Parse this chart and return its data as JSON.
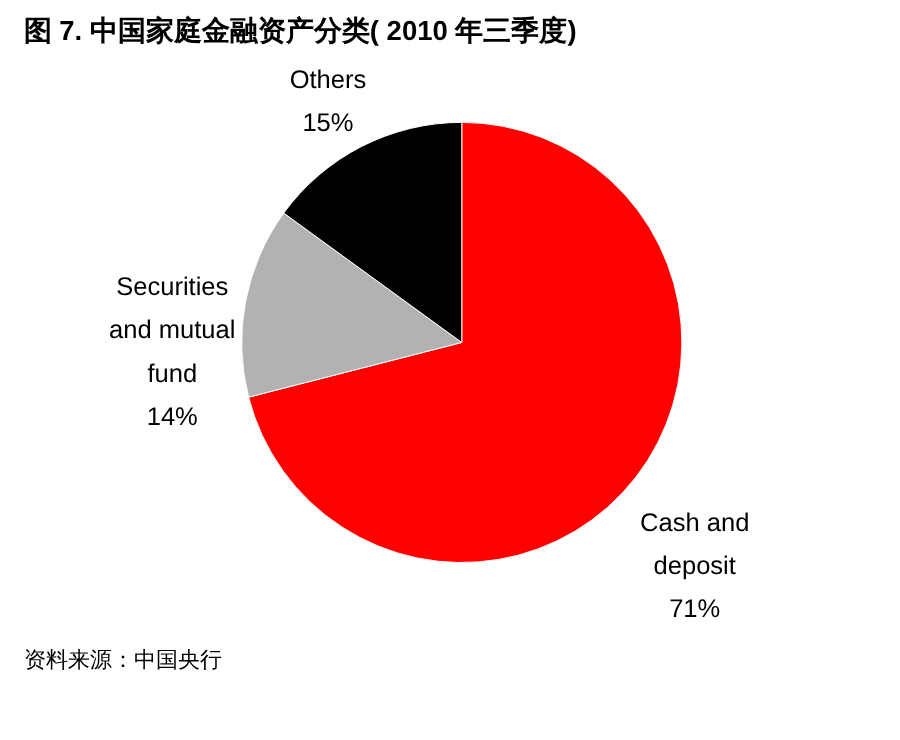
{
  "chart_data": {
    "type": "pie",
    "title": "图 7. 中国家庭金融资产分类( 2010 年三季度)",
    "categories": [
      "Cash and deposit",
      "Securities and mutual fund",
      "Others"
    ],
    "values": [
      71,
      14,
      15
    ],
    "colors": [
      "#ff0000",
      "#b2b2b2",
      "#000000"
    ],
    "value_labels": [
      "71%",
      "14%",
      "15%"
    ],
    "legend": false,
    "annotations": [
      "资料来源：中国央行"
    ]
  }
}
